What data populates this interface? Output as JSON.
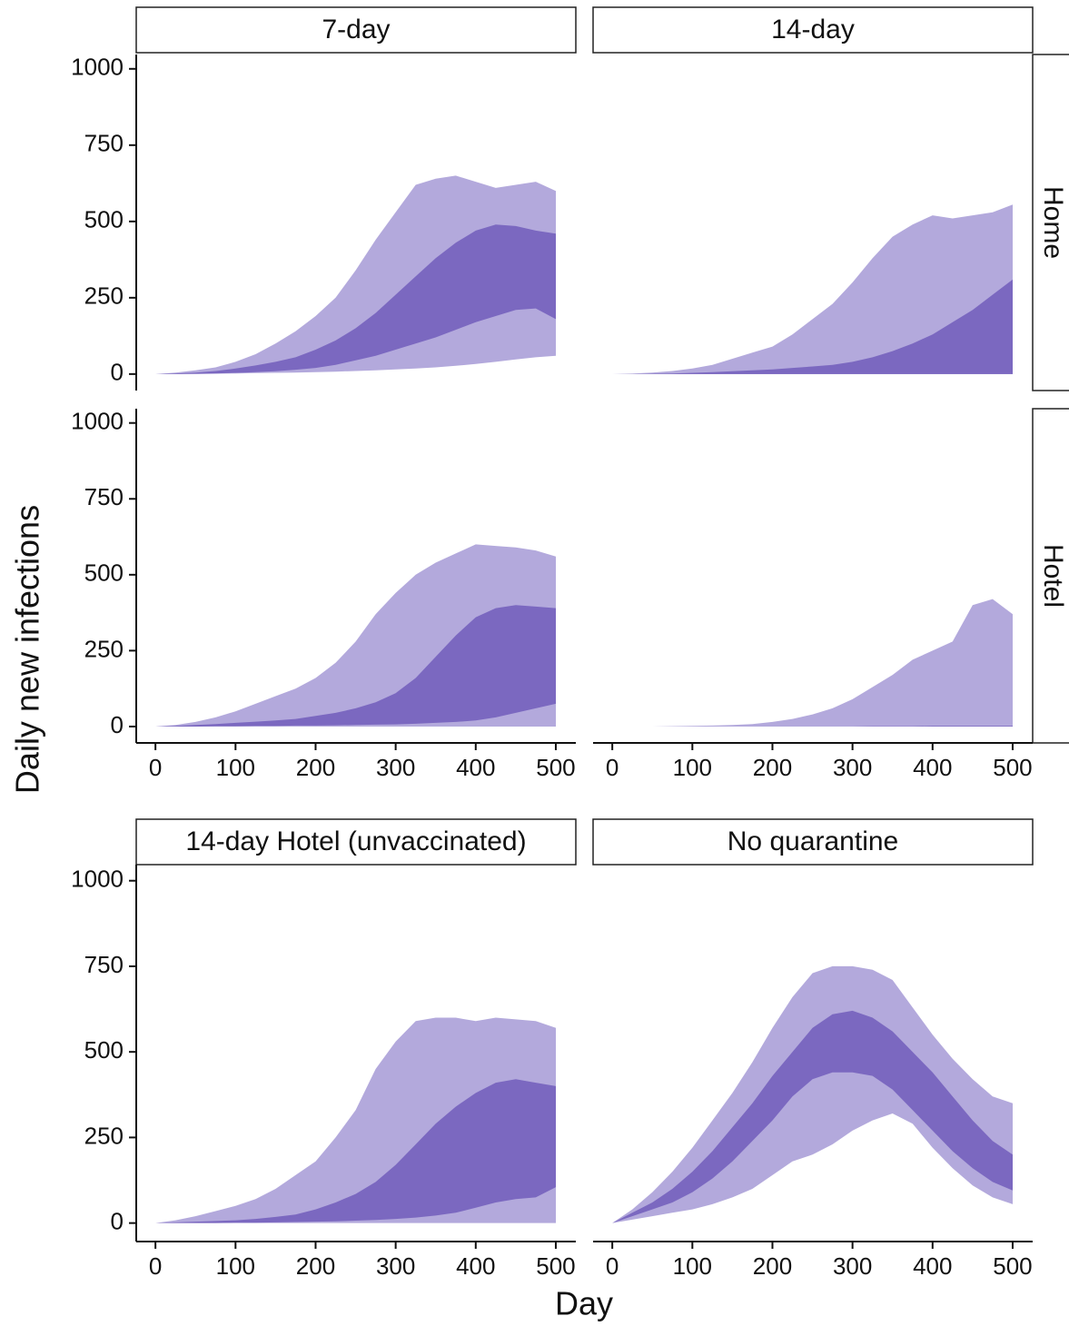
{
  "chart_data": {
    "type": "band",
    "xlabel": "Day",
    "ylabel": "Daily new infections",
    "x": [
      0,
      25,
      50,
      75,
      100,
      125,
      150,
      175,
      200,
      225,
      250,
      275,
      300,
      325,
      350,
      375,
      400,
      425,
      450,
      475,
      500
    ],
    "xlim": [
      -24,
      525
    ],
    "ylim": [
      -54,
      1047
    ],
    "xticks": [
      0,
      100,
      200,
      300,
      400,
      500
    ],
    "yticks": [
      0,
      250,
      500,
      750,
      1000
    ],
    "panels": [
      {
        "strip_top": "7-day",
        "series": [
          {
            "color": "#b3a9dc",
            "lower": [
              0,
              0,
              0,
              1,
              2,
              3,
              4,
              5,
              6,
              8,
              10,
              12,
              15,
              18,
              22,
              27,
              33,
              40,
              48,
              55,
              60
            ],
            "upper": [
              0,
              5,
              12,
              22,
              40,
              65,
              100,
              140,
              190,
              250,
              340,
              440,
              530,
              620,
              640,
              650,
              630,
              610,
              620,
              630,
              600
            ]
          },
          {
            "color": "#7b68c0",
            "lower": [
              0,
              0,
              1,
              2,
              4,
              6,
              9,
              14,
              20,
              30,
              45,
              60,
              80,
              100,
              120,
              145,
              170,
              190,
              210,
              215,
              180
            ],
            "upper": [
              0,
              2,
              5,
              10,
              18,
              28,
              40,
              55,
              80,
              110,
              150,
              200,
              260,
              320,
              380,
              430,
              470,
              490,
              485,
              470,
              460
            ]
          }
        ]
      },
      {
        "strip_top": "14-day",
        "strip_right": "Home",
        "series": [
          {
            "color": "#b3a9dc",
            "lower": [
              0,
              0,
              0,
              0,
              0,
              0,
              0,
              0,
              0,
              0,
              0,
              0,
              0,
              0,
              0,
              0,
              0,
              0,
              0,
              0,
              0
            ],
            "upper": [
              0,
              2,
              5,
              10,
              18,
              30,
              50,
              70,
              90,
              130,
              180,
              230,
              300,
              380,
              450,
              490,
              520,
              510,
              520,
              530,
              555
            ]
          },
          {
            "color": "#7b68c0",
            "lower": [
              0,
              0,
              0,
              0,
              0,
              0,
              0,
              0,
              0,
              0,
              0,
              0,
              0,
              0,
              0,
              0,
              0,
              0,
              0,
              0,
              0
            ],
            "upper": [
              0,
              0,
              1,
              2,
              4,
              6,
              9,
              12,
              15,
              20,
              25,
              30,
              40,
              55,
              75,
              100,
              130,
              170,
              210,
              260,
              310
            ]
          }
        ]
      },
      {
        "series": [
          {
            "color": "#b3a9dc",
            "lower": [
              0,
              0,
              0,
              0,
              0,
              0,
              0,
              0,
              0,
              0,
              0,
              0,
              0,
              0,
              0,
              0,
              0,
              0,
              0,
              0,
              0
            ],
            "upper": [
              0,
              5,
              15,
              30,
              50,
              75,
              100,
              125,
              160,
              210,
              280,
              370,
              440,
              500,
              540,
              570,
              600,
              595,
              590,
              580,
              560
            ]
          },
          {
            "color": "#7b68c0",
            "lower": [
              0,
              0,
              0,
              1,
              1,
              2,
              2,
              3,
              3,
              4,
              5,
              6,
              7,
              9,
              12,
              15,
              20,
              30,
              45,
              60,
              75
            ],
            "upper": [
              0,
              2,
              5,
              8,
              12,
              16,
              20,
              25,
              35,
              45,
              60,
              80,
              110,
              160,
              230,
              300,
              360,
              390,
              400,
              395,
              390
            ]
          }
        ]
      },
      {
        "strip_right": "Hotel",
        "series": [
          {
            "color": "#b3a9dc",
            "lower": [
              0,
              0,
              0,
              0,
              0,
              0,
              0,
              0,
              0,
              0,
              0,
              0,
              0,
              0,
              0,
              0,
              0,
              0,
              0,
              0,
              0
            ],
            "upper": [
              0,
              0,
              0,
              1,
              2,
              3,
              5,
              8,
              15,
              25,
              40,
              60,
              90,
              130,
              170,
              220,
              250,
              280,
              400,
              420,
              370
            ]
          },
          {
            "color": "#7b68c0",
            "lower": [
              0,
              0,
              0,
              0,
              0,
              0,
              0,
              0,
              0,
              0,
              0,
              0,
              0,
              0,
              0,
              0,
              0,
              0,
              0,
              0,
              0
            ],
            "upper": [
              0,
              0,
              0,
              0,
              0,
              0,
              0,
              0,
              0,
              0,
              0,
              0,
              0,
              1,
              1,
              1,
              2,
              2,
              2,
              2,
              2
            ]
          }
        ]
      },
      {
        "strip_top": "14-day Hotel (unvaccinated)",
        "series": [
          {
            "color": "#b3a9dc",
            "lower": [
              0,
              0,
              0,
              0,
              0,
              0,
              0,
              0,
              0,
              0,
              0,
              0,
              0,
              0,
              0,
              0,
              0,
              0,
              0,
              0,
              0
            ],
            "upper": [
              0,
              8,
              20,
              35,
              50,
              70,
              100,
              140,
              180,
              250,
              330,
              450,
              530,
              590,
              600,
              600,
              590,
              600,
              595,
              590,
              570
            ]
          },
          {
            "color": "#7b68c0",
            "lower": [
              0,
              0,
              0,
              0,
              1,
              1,
              2,
              3,
              4,
              5,
              7,
              9,
              12,
              16,
              22,
              30,
              45,
              60,
              70,
              75,
              105
            ],
            "upper": [
              0,
              2,
              4,
              6,
              8,
              12,
              18,
              25,
              40,
              60,
              85,
              120,
              170,
              230,
              290,
              340,
              380,
              410,
              420,
              410,
              400
            ]
          }
        ]
      },
      {
        "strip_top": "No quarantine",
        "series": [
          {
            "color": "#b3a9dc",
            "lower": [
              0,
              10,
              20,
              30,
              40,
              55,
              75,
              100,
              140,
              180,
              200,
              230,
              270,
              300,
              320,
              290,
              220,
              160,
              110,
              75,
              55
            ],
            "upper": [
              0,
              40,
              90,
              150,
              220,
              300,
              380,
              470,
              570,
              660,
              730,
              750,
              750,
              740,
              710,
              630,
              550,
              480,
              420,
              370,
              350
            ]
          },
          {
            "color": "#7b68c0",
            "lower": [
              0,
              20,
              40,
              60,
              90,
              130,
              180,
              240,
              300,
              370,
              420,
              440,
              440,
              430,
              390,
              330,
              270,
              210,
              160,
              120,
              95
            ],
            "upper": [
              0,
              30,
              60,
              100,
              150,
              210,
              280,
              350,
              430,
              500,
              570,
              610,
              620,
              600,
              560,
              500,
              440,
              370,
              300,
              240,
              200
            ]
          }
        ]
      }
    ]
  }
}
